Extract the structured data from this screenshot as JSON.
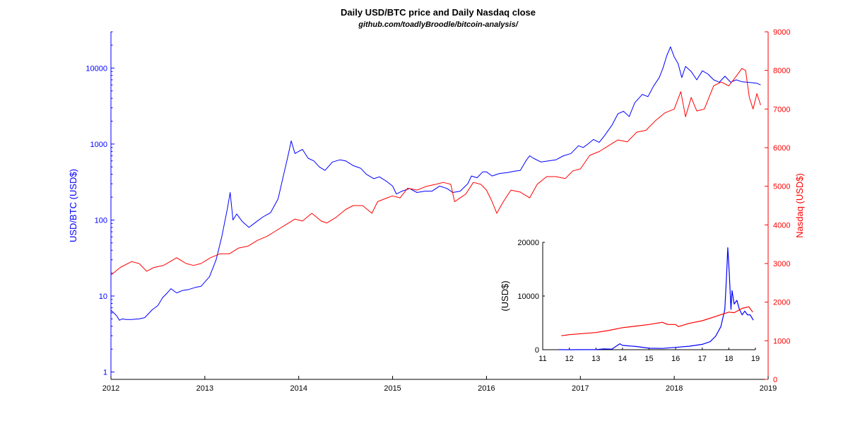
{
  "chart_data": [
    {
      "type": "line",
      "title": "Daily USD/BTC price and Daily Nasdaq close",
      "subtitle": "github.com/toadlyBroodle/bitcoin-analysis/",
      "x_ticks": [
        "2012",
        "2013",
        "2014",
        "2015",
        "2016",
        "2017",
        "2018",
        "2019"
      ],
      "xlim": [
        2012,
        2019
      ],
      "left_axis": {
        "label": "USD/BTC (USD$)",
        "scale": "log",
        "ylim": [
          0.8,
          30000
        ],
        "ticks": [
          {
            "value": 1,
            "label": "1"
          },
          {
            "value": 10,
            "label": "10"
          },
          {
            "value": 100,
            "label": "100"
          },
          {
            "value": 1000,
            "label": "1000"
          },
          {
            "value": 10000,
            "label": "10000"
          }
        ],
        "color": "#0000ff"
      },
      "right_axis": {
        "label": "Nasdaq (USD$)",
        "scale": "linear",
        "ylim": [
          0,
          9000
        ],
        "ticks": [
          "0",
          "1000",
          "2000",
          "3000",
          "4000",
          "5000",
          "6000",
          "7000",
          "8000",
          "9000"
        ],
        "color": "#ff0000"
      },
      "grid": false,
      "series": [
        {
          "axis": "left",
          "color": "#0000ff",
          "points": [
            [
              2012.0,
              6.5
            ],
            [
              2012.03,
              6.0
            ],
            [
              2012.06,
              5.5
            ],
            [
              2012.09,
              4.8
            ],
            [
              2012.12,
              5.0
            ],
            [
              2012.16,
              4.9
            ],
            [
              2012.22,
              4.9
            ],
            [
              2012.3,
              5.0
            ],
            [
              2012.36,
              5.2
            ],
            [
              2012.44,
              6.6
            ],
            [
              2012.5,
              7.5
            ],
            [
              2012.55,
              9.5
            ],
            [
              2012.6,
              11.0
            ],
            [
              2012.64,
              12.5
            ],
            [
              2012.7,
              11.0
            ],
            [
              2012.76,
              11.8
            ],
            [
              2012.83,
              12.2
            ],
            [
              2012.9,
              13.0
            ],
            [
              2012.96,
              13.4
            ],
            [
              2013.05,
              18
            ],
            [
              2013.12,
              30
            ],
            [
              2013.18,
              60
            ],
            [
              2013.24,
              140
            ],
            [
              2013.27,
              230
            ],
            [
              2013.3,
              100
            ],
            [
              2013.34,
              120
            ],
            [
              2013.4,
              95
            ],
            [
              2013.47,
              80
            ],
            [
              2013.55,
              95
            ],
            [
              2013.62,
              110
            ],
            [
              2013.7,
              125
            ],
            [
              2013.78,
              190
            ],
            [
              2013.84,
              400
            ],
            [
              2013.88,
              650
            ],
            [
              2013.92,
              1100
            ],
            [
              2013.96,
              750
            ],
            [
              2014.0,
              800
            ],
            [
              2014.04,
              850
            ],
            [
              2014.1,
              650
            ],
            [
              2014.16,
              600
            ],
            [
              2014.22,
              500
            ],
            [
              2014.28,
              450
            ],
            [
              2014.36,
              580
            ],
            [
              2014.44,
              620
            ],
            [
              2014.5,
              600
            ],
            [
              2014.58,
              520
            ],
            [
              2014.66,
              480
            ],
            [
              2014.72,
              400
            ],
            [
              2014.8,
              350
            ],
            [
              2014.86,
              370
            ],
            [
              2014.94,
              320
            ],
            [
              2015.0,
              280
            ],
            [
              2015.04,
              220
            ],
            [
              2015.1,
              240
            ],
            [
              2015.18,
              260
            ],
            [
              2015.26,
              230
            ],
            [
              2015.34,
              240
            ],
            [
              2015.42,
              240
            ],
            [
              2015.5,
              280
            ],
            [
              2015.58,
              260
            ],
            [
              2015.64,
              230
            ],
            [
              2015.72,
              240
            ],
            [
              2015.8,
              300
            ],
            [
              2015.84,
              380
            ],
            [
              2015.9,
              360
            ],
            [
              2015.96,
              430
            ],
            [
              2016.0,
              430
            ],
            [
              2016.06,
              380
            ],
            [
              2016.14,
              410
            ],
            [
              2016.22,
              420
            ],
            [
              2016.3,
              440
            ],
            [
              2016.36,
              450
            ],
            [
              2016.42,
              600
            ],
            [
              2016.46,
              700
            ],
            [
              2016.5,
              650
            ],
            [
              2016.58,
              580
            ],
            [
              2016.66,
              600
            ],
            [
              2016.74,
              620
            ],
            [
              2016.82,
              700
            ],
            [
              2016.9,
              750
            ],
            [
              2016.98,
              950
            ],
            [
              2017.03,
              900
            ],
            [
              2017.08,
              1000
            ],
            [
              2017.14,
              1150
            ],
            [
              2017.2,
              1050
            ],
            [
              2017.26,
              1300
            ],
            [
              2017.34,
              1800
            ],
            [
              2017.4,
              2500
            ],
            [
              2017.46,
              2700
            ],
            [
              2017.52,
              2300
            ],
            [
              2017.58,
              3500
            ],
            [
              2017.66,
              4500
            ],
            [
              2017.72,
              4200
            ],
            [
              2017.78,
              5800
            ],
            [
              2017.84,
              7500
            ],
            [
              2017.88,
              10000
            ],
            [
              2017.92,
              14500
            ],
            [
              2017.96,
              19000
            ],
            [
              2018.0,
              14000
            ],
            [
              2018.04,
              11500
            ],
            [
              2018.08,
              7500
            ],
            [
              2018.12,
              10500
            ],
            [
              2018.18,
              9000
            ],
            [
              2018.24,
              7000
            ],
            [
              2018.3,
              9200
            ],
            [
              2018.36,
              8300
            ],
            [
              2018.42,
              7000
            ],
            [
              2018.48,
              6500
            ],
            [
              2018.54,
              7800
            ],
            [
              2018.6,
              6500
            ],
            [
              2018.66,
              7000
            ],
            [
              2018.72,
              6600
            ],
            [
              2018.78,
              6500
            ],
            [
              2018.84,
              6400
            ],
            [
              2018.88,
              6300
            ],
            [
              2018.92,
              6000
            ]
          ]
        },
        {
          "axis": "right",
          "color": "#ff0000",
          "points": [
            [
              2012.0,
              2700
            ],
            [
              2012.1,
              2900
            ],
            [
              2012.22,
              3050
            ],
            [
              2012.3,
              3000
            ],
            [
              2012.38,
              2800
            ],
            [
              2012.46,
              2900
            ],
            [
              2012.56,
              2950
            ],
            [
              2012.7,
              3150
            ],
            [
              2012.8,
              3000
            ],
            [
              2012.88,
              2950
            ],
            [
              2012.96,
              3000
            ],
            [
              2013.06,
              3150
            ],
            [
              2013.16,
              3250
            ],
            [
              2013.26,
              3250
            ],
            [
              2013.36,
              3400
            ],
            [
              2013.46,
              3450
            ],
            [
              2013.56,
              3600
            ],
            [
              2013.66,
              3700
            ],
            [
              2013.76,
              3850
            ],
            [
              2013.86,
              4000
            ],
            [
              2013.96,
              4150
            ],
            [
              2014.04,
              4100
            ],
            [
              2014.14,
              4300
            ],
            [
              2014.24,
              4100
            ],
            [
              2014.3,
              4050
            ],
            [
              2014.4,
              4200
            ],
            [
              2014.5,
              4400
            ],
            [
              2014.58,
              4500
            ],
            [
              2014.68,
              4500
            ],
            [
              2014.78,
              4300
            ],
            [
              2014.84,
              4600
            ],
            [
              2014.94,
              4700
            ],
            [
              2015.0,
              4750
            ],
            [
              2015.08,
              4700
            ],
            [
              2015.16,
              4950
            ],
            [
              2015.26,
              4900
            ],
            [
              2015.36,
              5000
            ],
            [
              2015.46,
              5050
            ],
            [
              2015.54,
              5100
            ],
            [
              2015.62,
              5050
            ],
            [
              2015.66,
              4600
            ],
            [
              2015.72,
              4700
            ],
            [
              2015.78,
              4800
            ],
            [
              2015.86,
              5100
            ],
            [
              2015.94,
              5050
            ],
            [
              2016.0,
              4900
            ],
            [
              2016.06,
              4600
            ],
            [
              2016.11,
              4300
            ],
            [
              2016.18,
              4600
            ],
            [
              2016.26,
              4900
            ],
            [
              2016.36,
              4850
            ],
            [
              2016.46,
              4700
            ],
            [
              2016.54,
              5050
            ],
            [
              2016.64,
              5250
            ],
            [
              2016.74,
              5250
            ],
            [
              2016.84,
              5200
            ],
            [
              2016.92,
              5400
            ],
            [
              2017.0,
              5450
            ],
            [
              2017.1,
              5800
            ],
            [
              2017.2,
              5900
            ],
            [
              2017.3,
              6050
            ],
            [
              2017.4,
              6200
            ],
            [
              2017.5,
              6150
            ],
            [
              2017.6,
              6400
            ],
            [
              2017.7,
              6450
            ],
            [
              2017.8,
              6700
            ],
            [
              2017.9,
              6900
            ],
            [
              2018.0,
              7000
            ],
            [
              2018.07,
              7450
            ],
            [
              2018.12,
              6800
            ],
            [
              2018.18,
              7300
            ],
            [
              2018.24,
              6950
            ],
            [
              2018.32,
              7000
            ],
            [
              2018.42,
              7600
            ],
            [
              2018.5,
              7700
            ],
            [
              2018.58,
              7600
            ],
            [
              2018.66,
              7850
            ],
            [
              2018.72,
              8050
            ],
            [
              2018.76,
              8000
            ],
            [
              2018.8,
              7300
            ],
            [
              2018.84,
              7000
            ],
            [
              2018.88,
              7400
            ],
            [
              2018.92,
              7100
            ]
          ]
        }
      ]
    },
    {
      "type": "line",
      "x_ticks": [
        "11",
        "12",
        "13",
        "14",
        "15",
        "16",
        "17",
        "18",
        "19"
      ],
      "xlim": [
        11,
        19
      ],
      "ylim": [
        0,
        20000
      ],
      "y_ticks": [
        "0",
        "10000",
        "20000"
      ],
      "ylabel": "(USD$)",
      "grid": false,
      "series": [
        {
          "color": "#0000ff",
          "points": [
            [
              11.6,
              10
            ],
            [
              12.0,
              5
            ],
            [
              12.5,
              10
            ],
            [
              13.0,
              13
            ],
            [
              13.3,
              150
            ],
            [
              13.6,
              100
            ],
            [
              13.9,
              1100
            ],
            [
              14.0,
              800
            ],
            [
              14.5,
              600
            ],
            [
              15.0,
              280
            ],
            [
              15.5,
              240
            ],
            [
              16.0,
              430
            ],
            [
              16.5,
              650
            ],
            [
              17.0,
              1000
            ],
            [
              17.3,
              1500
            ],
            [
              17.5,
              2500
            ],
            [
              17.7,
              4300
            ],
            [
              17.85,
              7500
            ],
            [
              17.92,
              14500
            ],
            [
              17.96,
              19000
            ],
            [
              18.02,
              14000
            ],
            [
              18.08,
              7500
            ],
            [
              18.12,
              11000
            ],
            [
              18.2,
              8500
            ],
            [
              18.3,
              9200
            ],
            [
              18.4,
              7500
            ],
            [
              18.5,
              6500
            ],
            [
              18.6,
              7200
            ],
            [
              18.7,
              6500
            ],
            [
              18.8,
              6500
            ],
            [
              18.92,
              5500
            ]
          ]
        },
        {
          "color": "#ff0000",
          "points": [
            [
              11.7,
              2600
            ],
            [
              12.0,
              2800
            ],
            [
              12.5,
              3000
            ],
            [
              13.0,
              3200
            ],
            [
              13.5,
              3600
            ],
            [
              14.0,
              4100
            ],
            [
              14.5,
              4400
            ],
            [
              15.0,
              4700
            ],
            [
              15.5,
              5100
            ],
            [
              15.7,
              4700
            ],
            [
              16.0,
              4700
            ],
            [
              16.1,
              4300
            ],
            [
              16.5,
              4900
            ],
            [
              17.0,
              5400
            ],
            [
              17.5,
              6200
            ],
            [
              18.0,
              7000
            ],
            [
              18.2,
              6900
            ],
            [
              18.5,
              7700
            ],
            [
              18.75,
              8000
            ],
            [
              18.9,
              7000
            ]
          ]
        }
      ]
    }
  ]
}
